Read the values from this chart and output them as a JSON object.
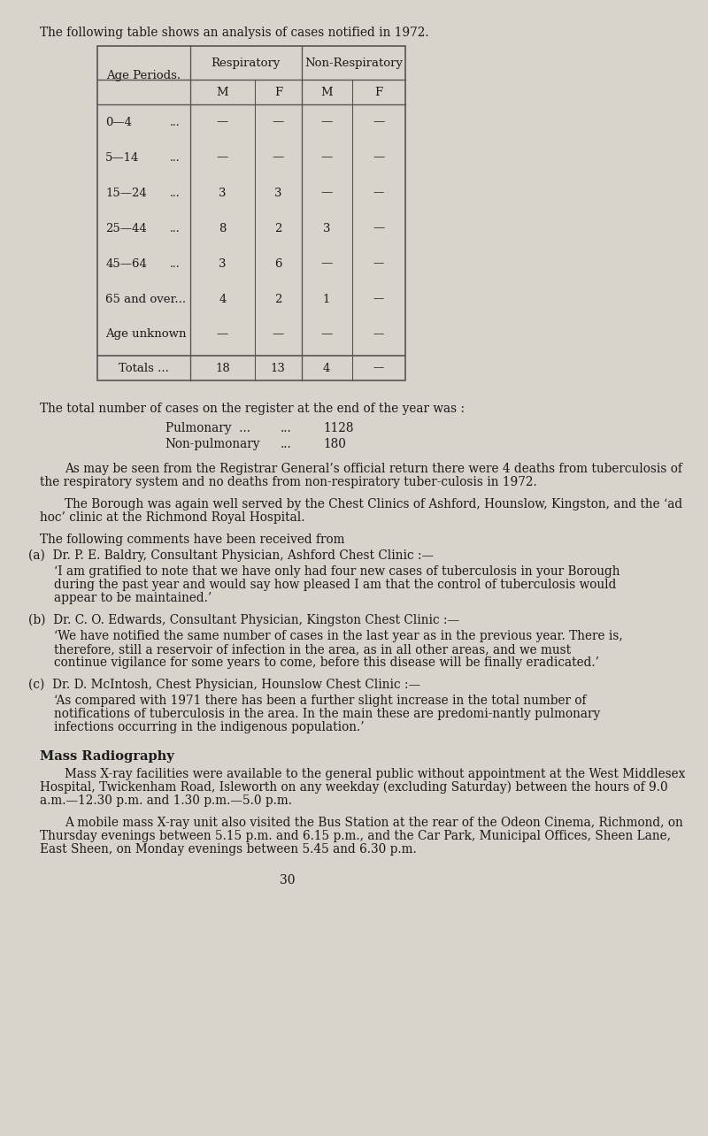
{
  "bg_color": "#d8d4cc",
  "text_color": "#1a1a1a",
  "page_number": "30",
  "intro_text": "The following table shows an analysis of cases notified in 1972.",
  "table": {
    "col_headers_top": [
      "Respiratory",
      "Non-Respiratory"
    ],
    "col_headers_sub": [
      "M",
      "F",
      "M",
      "F"
    ],
    "row_label": "Age Periods.",
    "rows": [
      {
        "age": "0—4",
        "dots": "...",
        "resp_m": "—",
        "resp_f": "—",
        "nonresp_m": "—",
        "nonresp_f": "—"
      },
      {
        "age": "5—14",
        "dots": "...",
        "resp_m": "—",
        "resp_f": "—",
        "nonresp_m": "—",
        "nonresp_f": "—"
      },
      {
        "age": "15—24",
        "dots": "...",
        "resp_m": "3",
        "resp_f": "3",
        "nonresp_m": "—",
        "nonresp_f": "––"
      },
      {
        "age": "25—44",
        "dots": "...",
        "resp_m": "8",
        "resp_f": "2",
        "nonresp_m": "3",
        "nonresp_f": "—"
      },
      {
        "age": "45—64",
        "dots": "...",
        "resp_m": "3",
        "resp_f": "6",
        "nonresp_m": "—",
        "nonresp_f": "––"
      },
      {
        "age": "65 and over...",
        "dots": "",
        "resp_m": "4",
        "resp_f": "2",
        "nonresp_m": "1",
        "nonresp_f": "––"
      },
      {
        "age": "Age unknown",
        "dots": "",
        "resp_m": "—",
        "resp_f": "—",
        "nonresp_m": "—",
        "nonresp_f": "––"
      }
    ],
    "totals": {
      "label": "Totals ...",
      "resp_m": "18",
      "resp_f": "13",
      "nonresp_m": "4",
      "nonresp_f": "––"
    }
  },
  "register_text": "The total number of cases on the register at the end of the year was :",
  "pulmonary_label": "Pulmonary  ...        ...        1128",
  "nonpulmonary_label": "Non-pulmonary    ...        180",
  "para1": "As may be seen from the Registrar General’s official return there were 4 deaths from tuberculosis of the respiratory system and no deaths from non-respiratory tuber-culosis in 1972.",
  "para2": "The Borough was again well served by the Chest Clinics of Ashford, Hounslow, Kingston, and the ‘ad hoc’ clinic at the Richmond Royal Hospital.",
  "para3": "The following comments have been received from",
  "section_a_header": "(a)  Dr. P. E. Baldry, Consultant Physician, Ashford Chest Clinic :—",
  "section_a_text": "‘I am gratified to note that we have only had four new cases of tuberculosis in your Borough during the past year and would say how pleased I am that the control of tuberculosis would appear to be maintained.’",
  "section_b_header": "(b)  Dr. C. O. Edwards, Consultant Physician, Kingston Chest Clinic :—",
  "section_b_text": "‘We have notified the same number of cases in the last year as in the previous year.  There is, therefore, still a reservoir of infection in the area, as in all other areas, and we must continue vigilance for some years to come, before this disease will be finally eradicated.’",
  "section_c_header": "(c)  Dr. D. McIntosh, Chest Physician, Hounslow Chest Clinic :—",
  "section_c_text": "‘As compared with 1971 there has been a further slight increase in the total number of notifications of tuberculosis in the area.  In the main these are predomi-nantly pulmonary infections occurring in the indigenous population.’",
  "mass_radio_header": "Mass Radiography",
  "mass_radio_para1": "Mass X-ray facilities were available to the general public without appointment at the West Middlesex Hospital, Twickenham Road, Isleworth on any weekday (excluding Saturday) between the hours of 9.0 a.m.—12.30 p.m. and 1.30 p.m.—5.0 p.m.",
  "mass_radio_para2": "A mobile mass X-ray unit also visited the Bus Station at the rear of the Odeon Cinema, Richmond, on Thursday evenings between 5.15 p.m. and 6.15 p.m., and the Car Park, Municipal Offices, Sheen Lane, East Sheen, on Monday evenings between 5.45 and 6.30 p.m."
}
